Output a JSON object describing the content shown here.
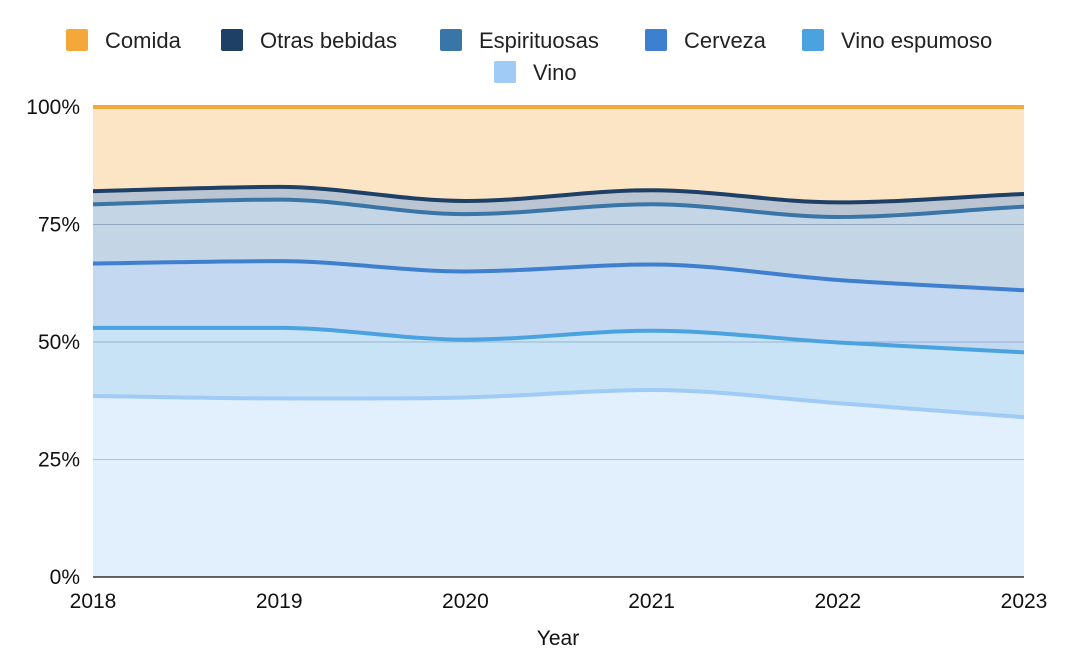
{
  "chart_data": {
    "type": "area",
    "stacked": "percent",
    "title": "",
    "xlabel": "Year",
    "ylabel": "",
    "x": [
      "2018",
      "2019",
      "2020",
      "2021",
      "2022",
      "2023"
    ],
    "ylim": [
      0,
      100
    ],
    "yticks": [
      "0%",
      "25%",
      "50%",
      "75%",
      "100%"
    ],
    "grid": true,
    "legend_position": "top",
    "series": [
      {
        "name": "Vino",
        "color": "#9fcbf6",
        "values": [
          38.5,
          38.0,
          38.2,
          39.8,
          37.0,
          34.0
        ]
      },
      {
        "name": "Vino espumoso",
        "color": "#4aa3df",
        "values": [
          14.5,
          15.0,
          12.3,
          12.6,
          12.9,
          13.8
        ]
      },
      {
        "name": "Cerveza",
        "color": "#3f7fd0",
        "values": [
          13.7,
          14.2,
          14.5,
          14.1,
          13.3,
          13.2
        ]
      },
      {
        "name": "Espirituosas",
        "color": "#3a75a8",
        "values": [
          12.6,
          13.1,
          12.2,
          12.8,
          13.4,
          17.8
        ]
      },
      {
        "name": "Otras bebidas",
        "color": "#1e3f66",
        "values": [
          2.8,
          2.7,
          2.8,
          3.0,
          3.1,
          2.7
        ]
      },
      {
        "name": "Comida",
        "color": "#f4a83a",
        "values": [
          17.9,
          17.0,
          20.0,
          17.7,
          20.3,
          18.5
        ]
      }
    ],
    "legend_order": [
      "Comida",
      "Otras bebidas",
      "Espirituosas",
      "Cerveza",
      "Vino espumoso",
      "Vino"
    ]
  }
}
